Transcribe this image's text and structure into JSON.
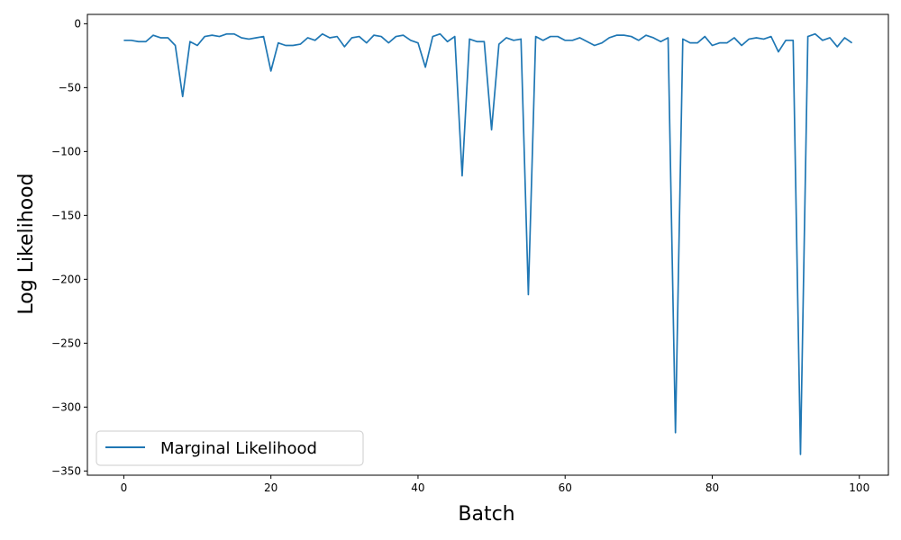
{
  "chart_data": {
    "type": "line",
    "title": "",
    "xlabel": "Batch",
    "ylabel": "Log Likelihood",
    "xlim": [
      -4.95,
      103.95
    ],
    "ylim": [
      -353.3,
      7.3
    ],
    "xticks": [
      0,
      20,
      40,
      60,
      80,
      100
    ],
    "yticks": [
      0,
      -50,
      -100,
      -150,
      -200,
      -250,
      -300,
      -350
    ],
    "grid": false,
    "legend": "lower-left",
    "series": [
      {
        "name": "Marginal Likelihood",
        "color": "#1f77b4",
        "x": [
          0,
          1,
          2,
          3,
          4,
          5,
          6,
          7,
          8,
          9,
          10,
          11,
          12,
          13,
          14,
          15,
          16,
          17,
          18,
          19,
          20,
          21,
          22,
          23,
          24,
          25,
          26,
          27,
          28,
          29,
          30,
          31,
          32,
          33,
          34,
          35,
          36,
          37,
          38,
          39,
          40,
          41,
          42,
          43,
          44,
          45,
          46,
          47,
          48,
          49,
          50,
          51,
          52,
          53,
          54,
          55,
          56,
          57,
          58,
          59,
          60,
          61,
          62,
          63,
          64,
          65,
          66,
          67,
          68,
          69,
          70,
          71,
          72,
          73,
          74,
          75,
          76,
          77,
          78,
          79,
          80,
          81,
          82,
          83,
          84,
          85,
          86,
          87,
          88,
          89,
          90,
          91,
          92,
          93,
          94,
          95,
          96,
          97,
          98,
          99
        ],
        "y": [
          -13,
          -13,
          -14,
          -14,
          -9,
          -11,
          -11,
          -17,
          -57,
          -14,
          -17,
          -10,
          -9,
          -10,
          -8,
          -8,
          -11,
          -12,
          -11,
          -10,
          -37,
          -15,
          -17,
          -17,
          -16,
          -11,
          -13,
          -8,
          -11,
          -10,
          -18,
          -11,
          -10,
          -15,
          -9,
          -10,
          -15,
          -10,
          -9,
          -13,
          -15,
          -34,
          -10,
          -8,
          -14,
          -10,
          -119,
          -12,
          -14,
          -14,
          -83,
          -16,
          -11,
          -13,
          -12,
          -212,
          -10,
          -13,
          -10,
          -10,
          -13,
          -13,
          -11,
          -14,
          -17,
          -15,
          -11,
          -9,
          -9,
          -10,
          -13,
          -9,
          -11,
          -14,
          -11,
          -320,
          -12,
          -15,
          -15,
          -10,
          -17,
          -15,
          -15,
          -11,
          -17,
          -12,
          -11,
          -12,
          -10,
          -22,
          -13,
          -13,
          -337,
          -10,
          -8,
          -13,
          -11,
          -18,
          -11,
          -15
        ]
      }
    ]
  }
}
